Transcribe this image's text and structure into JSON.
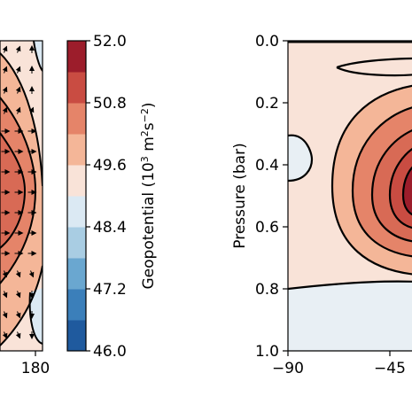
{
  "chart_data": [
    {
      "type": "heatmap",
      "description_role": "left map panel (cropped): geopotential contours with wind arrows",
      "xticks": [
        "180"
      ],
      "colorbar": {
        "label_prefix": "Geopotential (10",
        "label_sup1": "3",
        "label_mid": " m",
        "label_sup2": "2",
        "label_mid2": "s",
        "label_sup3": "−2",
        "label_suffix": ")",
        "ticks": [
          "52.0",
          "50.8",
          "49.6",
          "48.4",
          "47.2",
          "46.0"
        ],
        "range": [
          46.0,
          52.0
        ],
        "levels": 10,
        "colors": [
          "#1f5a9e",
          "#3b7fba",
          "#6aa7d0",
          "#a9cde3",
          "#dbe9f3",
          "#f9e3d8",
          "#f4b698",
          "#e58469",
          "#c94c42",
          "#9c1d2b"
        ]
      }
    },
    {
      "type": "heatmap",
      "description_role": "right zonal-mean pressure panel (cropped)",
      "ylabel": "Pressure (bar)",
      "yticks": [
        "0.0",
        "0.2",
        "0.4",
        "0.6",
        "0.8",
        "1.0"
      ],
      "ylim": [
        0.0,
        1.0
      ],
      "xticks": [
        "−90",
        "−45"
      ]
    }
  ]
}
